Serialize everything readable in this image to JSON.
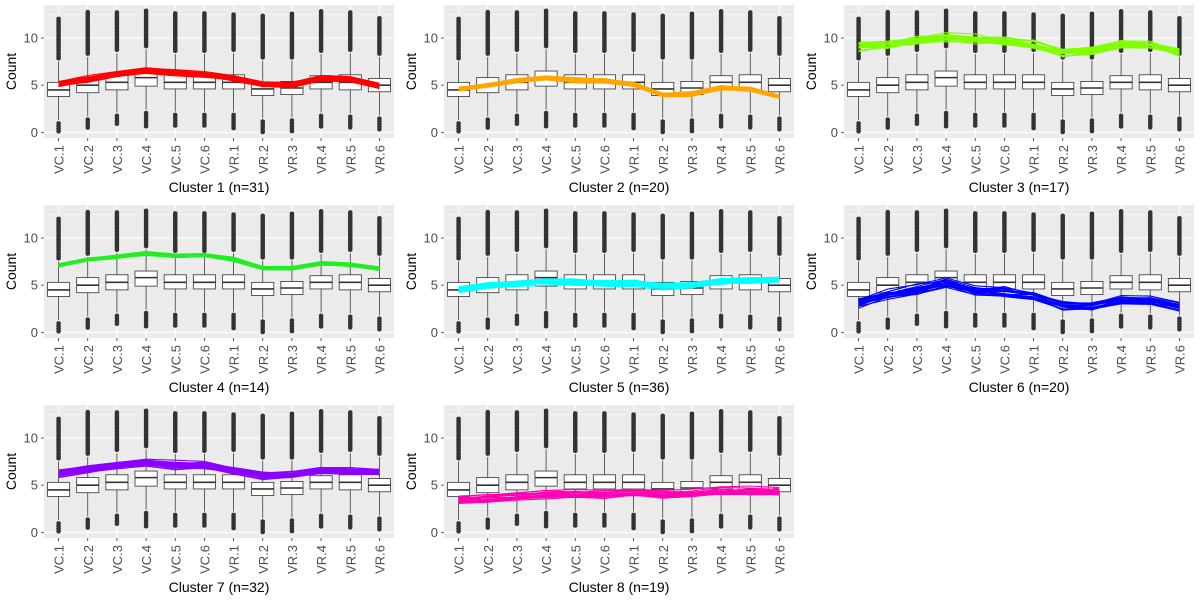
{
  "chart_data": {
    "type": "box",
    "layout": {
      "rows": 3,
      "cols": 3
    },
    "ylabel": "Count",
    "categories": [
      "VC.1",
      "VC.2",
      "VC.3",
      "VC.4",
      "VC.5",
      "VC.6",
      "VR.1",
      "VR.2",
      "VR.3",
      "VR.4",
      "VR.5",
      "VR.6"
    ],
    "ylim": [
      -0.6,
      13.5
    ],
    "yticks": [
      0,
      5,
      10
    ],
    "grid": true,
    "background_color": "#ebebeb",
    "boxplot": {
      "q1": [
        3.8,
        4.2,
        4.5,
        4.9,
        4.6,
        4.6,
        4.6,
        3.9,
        4.0,
        4.6,
        4.5,
        4.3
      ],
      "median": [
        4.5,
        5.0,
        5.3,
        5.8,
        5.3,
        5.3,
        5.3,
        4.6,
        4.7,
        5.3,
        5.3,
        5.0
      ],
      "q3": [
        5.3,
        5.8,
        6.1,
        6.5,
        6.1,
        6.1,
        6.1,
        5.3,
        5.4,
        6.0,
        6.1,
        5.7
      ],
      "whisker_low": [
        1.3,
        1.7,
        2.1,
        2.4,
        2.2,
        2.2,
        2.2,
        1.5,
        1.6,
        2.1,
        2.0,
        1.8
      ],
      "whisker_high": [
        7.5,
        8.0,
        8.4,
        8.8,
        8.3,
        8.3,
        8.4,
        7.6,
        7.6,
        8.3,
        8.4,
        8.0
      ],
      "outlier_high": [
        12.2,
        12.9,
        12.9,
        12.9,
        12.8,
        12.8,
        12.7,
        12.4,
        12.6,
        12.9,
        12.9,
        12.3
      ],
      "outlier_low": [
        0.0,
        0.3,
        0.7,
        0.6,
        0.5,
        0.5,
        0.3,
        0.0,
        0.1,
        0.4,
        0.5,
        0.1
      ]
    },
    "panels": [
      {
        "title": "Cluster 1 (n=31)",
        "color": "#ff0000",
        "line_count": 31,
        "profile": [
          5.1,
          5.6,
          6.1,
          6.5,
          6.3,
          6.1,
          5.7,
          5.0,
          5.0,
          5.6,
          5.6,
          4.9
        ],
        "spread": 0.35
      },
      {
        "title": "Cluster 2 (n=20)",
        "color": "#ffa500",
        "line_count": 20,
        "profile": [
          4.6,
          5.0,
          5.5,
          5.8,
          5.6,
          5.5,
          5.1,
          4.0,
          4.1,
          4.8,
          4.6,
          3.8
        ],
        "spread": 0.3
      },
      {
        "title": "Cluster 3 (n=17)",
        "color": "#7fff00",
        "line_count": 17,
        "profile": [
          9.0,
          9.3,
          9.7,
          10.0,
          9.8,
          9.6,
          9.3,
          8.4,
          8.5,
          9.2,
          9.3,
          8.4
        ],
        "spread": 0.7
      },
      {
        "title": "Cluster 4 (n=14)",
        "color": "#22ee22",
        "line_count": 14,
        "profile": [
          7.1,
          7.7,
          8.0,
          8.4,
          8.1,
          8.2,
          7.7,
          6.8,
          6.8,
          7.3,
          7.2,
          6.7
        ],
        "spread": 0.25
      },
      {
        "title": "Cluster 5 (n=36)",
        "color": "#00ffff",
        "line_count": 36,
        "profile": [
          4.5,
          5.0,
          5.2,
          5.4,
          5.3,
          5.2,
          5.2,
          4.9,
          5.0,
          5.4,
          5.5,
          5.6
        ],
        "spread": 0.35
      },
      {
        "title": "Cluster 6 (n=20)",
        "color": "#0000ff",
        "line_count": 20,
        "profile": [
          3.2,
          4.0,
          4.6,
          5.3,
          4.5,
          4.3,
          4.0,
          2.9,
          2.8,
          3.5,
          3.5,
          2.8
        ],
        "spread": 0.7
      },
      {
        "title": "Cluster 7 (n=32)",
        "color": "#8b00ff",
        "line_count": 32,
        "profile": [
          6.3,
          6.7,
          7.1,
          7.4,
          7.1,
          7.1,
          6.6,
          6.0,
          6.1,
          6.5,
          6.5,
          6.4
        ],
        "spread": 0.45
      },
      {
        "title": "Cluster 8 (n=19)",
        "color": "#ff00b4",
        "line_count": 19,
        "profile": [
          3.4,
          3.6,
          3.8,
          4.0,
          4.0,
          4.0,
          4.2,
          4.0,
          4.1,
          4.3,
          4.3,
          4.3
        ],
        "spread": 0.5
      }
    ]
  }
}
